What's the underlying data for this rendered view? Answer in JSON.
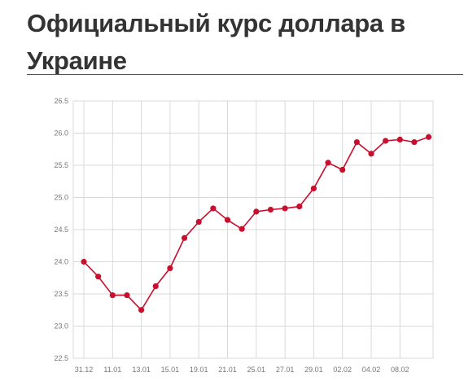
{
  "header": {
    "title": "Официальный курс доллара в Украине"
  },
  "chart_data": {
    "type": "line",
    "title": "Официальный курс доллара в Украине",
    "xlabel": "",
    "ylabel": "",
    "ylim": [
      22.5,
      26.5
    ],
    "grid": true,
    "legend": "none",
    "yticks": [
      "22.5",
      "23.0",
      "23.5",
      "24.0",
      "24.5",
      "25.0",
      "25.5",
      "26.0",
      "26.5"
    ],
    "xticks": [
      {
        "label": "31.12",
        "index": 0
      },
      {
        "label": "11.01",
        "index": 2
      },
      {
        "label": "13.01",
        "index": 4
      },
      {
        "label": "15.01",
        "index": 6
      },
      {
        "label": "19.01",
        "index": 8
      },
      {
        "label": "21.01",
        "index": 10
      },
      {
        "label": "25.01",
        "index": 12
      },
      {
        "label": "27.01",
        "index": 14
      },
      {
        "label": "29.01",
        "index": 16
      },
      {
        "label": "02.02",
        "index": 18
      },
      {
        "label": "04.02",
        "index": 20
      },
      {
        "label": "08.02",
        "index": 22
      }
    ],
    "series": [
      {
        "color": "#c8102e",
        "values": [
          24.0,
          23.77,
          23.48,
          23.48,
          23.25,
          23.62,
          23.9,
          24.37,
          24.62,
          24.83,
          24.65,
          24.51,
          24.78,
          24.81,
          24.83,
          24.86,
          25.14,
          25.54,
          25.43,
          25.86,
          25.68,
          25.88,
          25.9,
          25.86,
          25.94
        ]
      }
    ]
  }
}
